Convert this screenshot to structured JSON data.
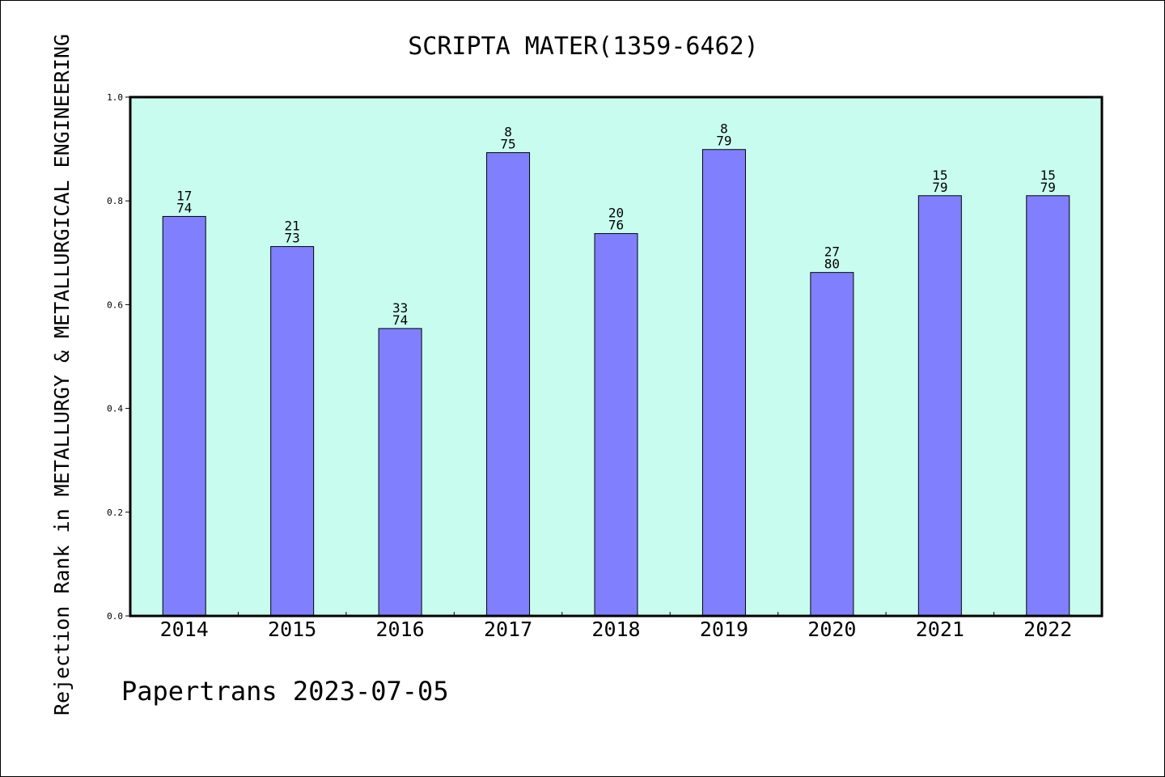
{
  "chart_data": {
    "type": "bar",
    "title": "SCRIPTA MATER(1359-6462)",
    "ylabel": "Rejection Rank in METALLURGY & METALLURGICAL ENGINEERING",
    "xlabel": "",
    "categories": [
      "2014",
      "2015",
      "2016",
      "2017",
      "2018",
      "2019",
      "2020",
      "2021",
      "2022"
    ],
    "values": [
      0.77,
      0.712,
      0.554,
      0.893,
      0.737,
      0.899,
      0.662,
      0.81,
      0.81
    ],
    "rank": [
      "17",
      "21",
      "33",
      "8",
      "20",
      "8",
      "27",
      "15",
      "15"
    ],
    "total": [
      "74",
      "73",
      "74",
      "75",
      "76",
      "79",
      "80",
      "79",
      "79"
    ],
    "ylim": [
      0.0,
      1.0
    ],
    "yticks": [
      "0.0",
      "0.2",
      "0.4",
      "0.6",
      "0.8",
      "1.0"
    ],
    "grid": false,
    "colors": {
      "bar": "#8080ff",
      "plot_background": "#c8fcee",
      "frame": "#000000"
    }
  },
  "footer": {
    "credit": "Papertrans 2023-07-05"
  }
}
